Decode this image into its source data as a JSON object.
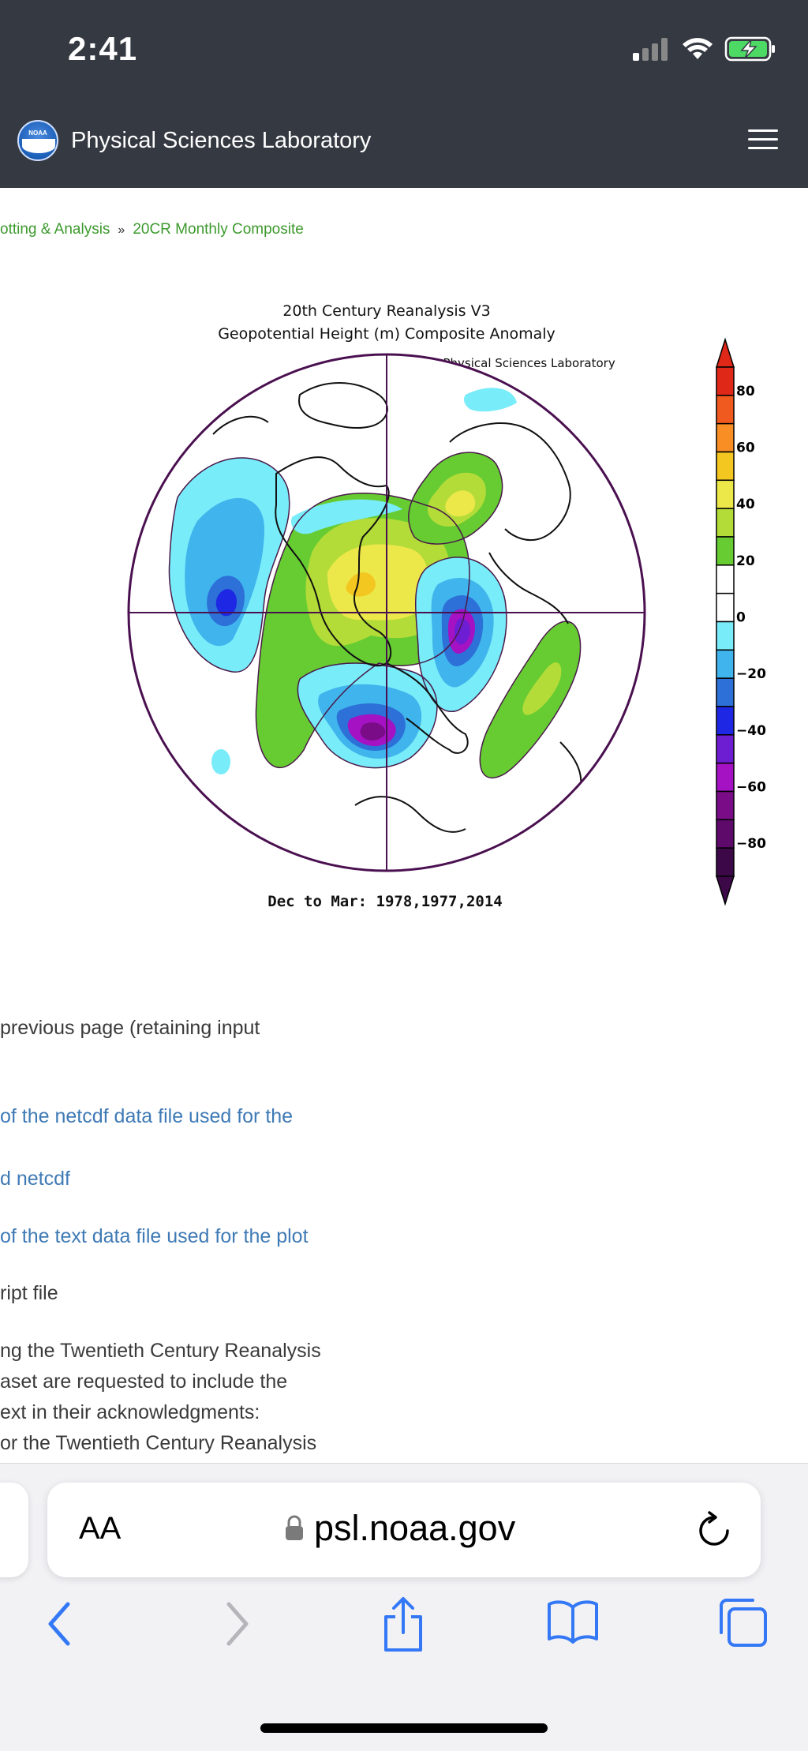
{
  "status_bar": {
    "time": "2:41"
  },
  "header": {
    "site_name": "Physical Sciences Laboratory",
    "logo_text": "NOAA"
  },
  "breadcrumb": {
    "item1": "otting & Analysis",
    "separator": "»",
    "item2": "20CR Monthly Composite"
  },
  "plot": {
    "title_line1": "20th Century Reanalysis V3",
    "title_line2": "Geopotential Height (m) Composite Anomaly",
    "credit": "NOAA Physical Sciences Laboratory",
    "period": "Dec to Mar: 1978,1977,2014",
    "colorbar_labels": [
      "80",
      "60",
      "40",
      "20",
      "0",
      "−20",
      "−40",
      "−60",
      "−80"
    ],
    "colorbar_colors": [
      "#e02818",
      "#f05a1e",
      "#f98f24",
      "#f3c620",
      "#ede84a",
      "#b4dc38",
      "#66cc32",
      "#ffffff",
      "#ffffff",
      "#78ecf8",
      "#40b4ec",
      "#2c70d8",
      "#1e28e4",
      "#6e1ed2",
      "#a412c4",
      "#7a0c88",
      "#5e0a6a",
      "#3c0848"
    ]
  },
  "content": {
    "line1": "previous page (retaining input",
    "link1": "of the netcdf data file used for the",
    "link2": "d netcdf",
    "link3": "of the text data file used for the plot",
    "line2": "ript file",
    "para1": "ng the Twentieth Century Reanalysis",
    "para2": "aset are requested to include the",
    "para3": "ext in their acknowledgments:",
    "para4": "or the Twentieth Century Reanalysis"
  },
  "browser": {
    "aa_label": "AA",
    "url": "psl.noaa.gov"
  },
  "colors": {
    "header_bg": "#353a42",
    "link_blue": "#3f7ab5",
    "breadcrumb_green": "#3d9a2e",
    "ios_blue": "#3478f6"
  }
}
